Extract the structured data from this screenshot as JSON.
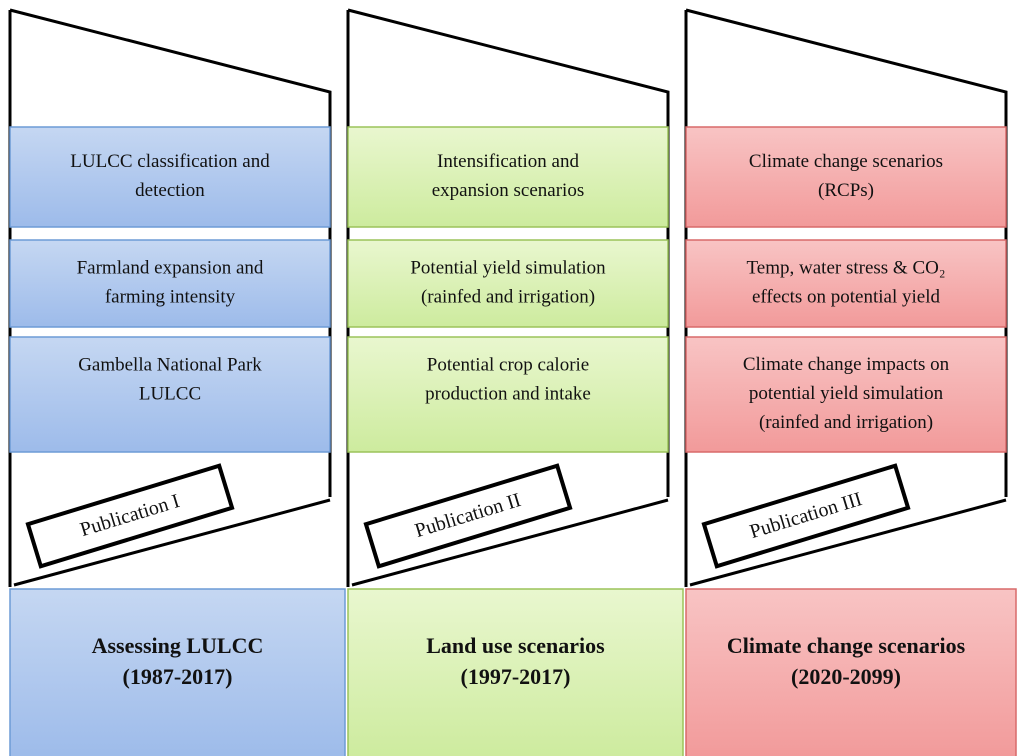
{
  "columns": [
    {
      "boxes": [
        [
          "LULCC classification and",
          "detection"
        ],
        [
          "Farmland expansion and",
          "farming intensity"
        ],
        [
          "Gambella National Park",
          "LULCC"
        ]
      ],
      "publication": "Publication I",
      "title": [
        "Assessing LULCC",
        "(1987-2017)"
      ]
    },
    {
      "boxes": [
        [
          "Intensification and",
          "expansion scenarios"
        ],
        [
          "Potential yield simulation",
          "(rainfed and irrigation)"
        ],
        [
          "Potential crop calorie",
          "production and intake"
        ]
      ],
      "publication": "Publication II",
      "title": [
        "Land use scenarios",
        "(1997-2017)"
      ]
    },
    {
      "boxes": [
        [
          "Climate change scenarios",
          "(RCPs)"
        ],
        [
          "Temp, water stress & CO₂",
          "effects on potential yield"
        ],
        [
          "Climate change impacts on",
          "potential yield simulation",
          "(rainfed and irrigation)"
        ]
      ],
      "publication": "Publication III",
      "title": [
        "Climate change scenarios",
        "(2020-2099)"
      ]
    }
  ]
}
